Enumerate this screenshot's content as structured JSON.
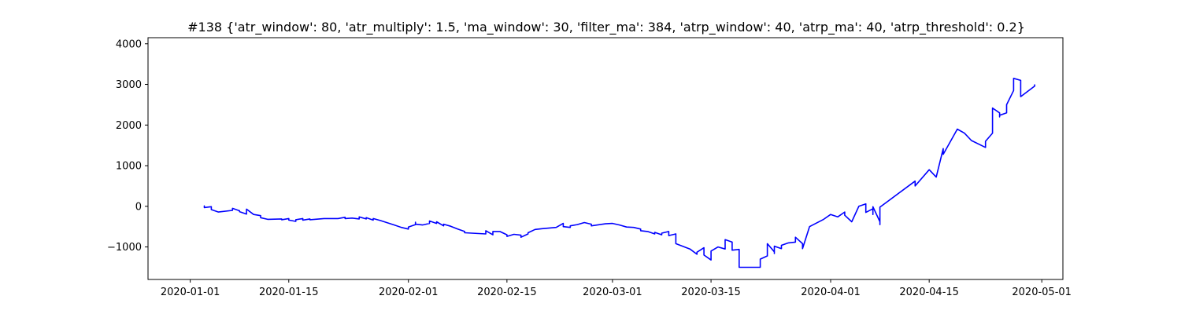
{
  "chart_data": {
    "type": "line",
    "title": "#138 {'atr_window': 80, 'atr_multiply': 1.5, 'ma_window': 30, 'filter_ma': 384, 'atrp_window': 40, 'atrp_ma': 40, 'atrp_threshold': 0.2}",
    "xlabel": "",
    "ylabel": "",
    "grid": false,
    "legend": "none",
    "xlim": [
      "2019-12-26",
      "2020-05-04"
    ],
    "ylim": [
      -1800,
      4150
    ],
    "x_ticks": [
      "2020-01-01",
      "2020-01-15",
      "2020-02-01",
      "2020-02-15",
      "2020-03-01",
      "2020-03-15",
      "2020-04-01",
      "2020-04-15",
      "2020-05-01"
    ],
    "y_ticks": [
      -1000,
      0,
      1000,
      2000,
      3000,
      4000
    ],
    "y_tick_labels": [
      "−1000",
      "0",
      "1000",
      "2000",
      "3000",
      "4000"
    ],
    "series": [
      {
        "color": "#0000ff",
        "points": [
          [
            "2020-01-03",
            0
          ],
          [
            "2020-01-03",
            -20
          ],
          [
            "2020-01-03",
            10
          ],
          [
            "2020-01-03",
            -30
          ],
          [
            "2020-01-04",
            -10
          ],
          [
            "2020-01-04",
            -60
          ],
          [
            "2020-01-04",
            -40
          ],
          [
            "2020-01-04",
            -80
          ],
          [
            "2020-01-05",
            -140
          ],
          [
            "2020-01-07",
            -100
          ],
          [
            "2020-01-07",
            -80
          ],
          [
            "2020-01-07",
            -50
          ],
          [
            "2020-01-08",
            -110
          ],
          [
            "2020-01-08",
            -130
          ],
          [
            "2020-01-09",
            -190
          ],
          [
            "2020-01-09",
            -70
          ],
          [
            "2020-01-10",
            -200
          ],
          [
            "2020-01-11",
            -230
          ],
          [
            "2020-01-11",
            -280
          ],
          [
            "2020-01-12",
            -320
          ],
          [
            "2020-01-14",
            -310
          ],
          [
            "2020-01-14",
            -330
          ],
          [
            "2020-01-15",
            -300
          ],
          [
            "2020-01-15",
            -340
          ],
          [
            "2020-01-16",
            -370
          ],
          [
            "2020-01-16",
            -330
          ],
          [
            "2020-01-17",
            -300
          ],
          [
            "2020-01-17",
            -340
          ],
          [
            "2020-01-18",
            -310
          ],
          [
            "2020-01-18",
            -330
          ],
          [
            "2020-01-20",
            -300
          ],
          [
            "2020-01-21",
            -300
          ],
          [
            "2020-01-22",
            -300
          ],
          [
            "2020-01-23",
            -270
          ],
          [
            "2020-01-23",
            -300
          ],
          [
            "2020-01-24",
            -290
          ],
          [
            "2020-01-25",
            -310
          ],
          [
            "2020-01-25",
            -260
          ],
          [
            "2020-01-26",
            -310
          ],
          [
            "2020-01-26",
            -280
          ],
          [
            "2020-01-27",
            -340
          ],
          [
            "2020-01-27",
            -300
          ],
          [
            "2020-01-28",
            -350
          ],
          [
            "2020-01-30",
            -460
          ],
          [
            "2020-01-31",
            -520
          ],
          [
            "2020-02-01",
            -560
          ],
          [
            "2020-02-01",
            -510
          ],
          [
            "2020-02-02",
            -450
          ],
          [
            "2020-02-02",
            -390
          ],
          [
            "2020-02-02",
            -440
          ],
          [
            "2020-02-03",
            -460
          ],
          [
            "2020-02-04",
            -420
          ],
          [
            "2020-02-04",
            -360
          ],
          [
            "2020-02-05",
            -420
          ],
          [
            "2020-02-05",
            -380
          ],
          [
            "2020-02-06",
            -480
          ],
          [
            "2020-02-06",
            -440
          ],
          [
            "2020-02-07",
            -490
          ],
          [
            "2020-02-08",
            -560
          ],
          [
            "2020-02-09",
            -620
          ],
          [
            "2020-02-09",
            -650
          ],
          [
            "2020-02-11",
            -670
          ],
          [
            "2020-02-12",
            -680
          ],
          [
            "2020-02-12",
            -600
          ],
          [
            "2020-02-13",
            -700
          ],
          [
            "2020-02-13",
            -620
          ],
          [
            "2020-02-14",
            -620
          ],
          [
            "2020-02-15",
            -700
          ],
          [
            "2020-02-15",
            -740
          ],
          [
            "2020-02-16",
            -690
          ],
          [
            "2020-02-17",
            -710
          ],
          [
            "2020-02-17",
            -760
          ],
          [
            "2020-02-18",
            -680
          ],
          [
            "2020-02-18",
            -650
          ],
          [
            "2020-02-19",
            -570
          ],
          [
            "2020-02-20",
            -550
          ],
          [
            "2020-02-22",
            -520
          ],
          [
            "2020-02-23",
            -420
          ],
          [
            "2020-02-23",
            -500
          ],
          [
            "2020-02-24",
            -520
          ],
          [
            "2020-02-24",
            -480
          ],
          [
            "2020-02-25",
            -450
          ],
          [
            "2020-02-26",
            -400
          ],
          [
            "2020-02-27",
            -440
          ],
          [
            "2020-02-27",
            -480
          ],
          [
            "2020-02-29",
            -430
          ],
          [
            "2020-03-01",
            -420
          ],
          [
            "2020-03-02",
            -460
          ],
          [
            "2020-03-03",
            -510
          ],
          [
            "2020-03-04",
            -520
          ],
          [
            "2020-03-05",
            -560
          ],
          [
            "2020-03-05",
            -600
          ],
          [
            "2020-03-06",
            -620
          ],
          [
            "2020-03-07",
            -680
          ],
          [
            "2020-03-07",
            -640
          ],
          [
            "2020-03-08",
            -700
          ],
          [
            "2020-03-08",
            -660
          ],
          [
            "2020-03-09",
            -620
          ],
          [
            "2020-03-09",
            -720
          ],
          [
            "2020-03-10",
            -680
          ],
          [
            "2020-03-10",
            -920
          ],
          [
            "2020-03-12",
            -1050
          ],
          [
            "2020-03-13",
            -1180
          ],
          [
            "2020-03-13",
            -1130
          ],
          [
            "2020-03-14",
            -1020
          ],
          [
            "2020-03-14",
            -1200
          ],
          [
            "2020-03-15",
            -1320
          ],
          [
            "2020-03-15",
            -1100
          ],
          [
            "2020-03-16",
            -1000
          ],
          [
            "2020-03-17",
            -1050
          ],
          [
            "2020-03-17",
            -820
          ],
          [
            "2020-03-18",
            -880
          ],
          [
            "2020-03-18",
            -1080
          ],
          [
            "2020-03-19",
            -1060
          ],
          [
            "2020-03-19",
            -1500
          ],
          [
            "2020-03-22",
            -1500
          ],
          [
            "2020-03-22",
            -1300
          ],
          [
            "2020-03-23",
            -1220
          ],
          [
            "2020-03-23",
            -1100
          ],
          [
            "2020-03-23",
            -920
          ],
          [
            "2020-03-24",
            -1120
          ],
          [
            "2020-03-24",
            -1160
          ],
          [
            "2020-03-24",
            -980
          ],
          [
            "2020-03-25",
            -1040
          ],
          [
            "2020-03-25",
            -960
          ],
          [
            "2020-03-26",
            -900
          ],
          [
            "2020-03-27",
            -880
          ],
          [
            "2020-03-27",
            -760
          ],
          [
            "2020-03-28",
            -920
          ],
          [
            "2020-03-28",
            -1040
          ],
          [
            "2020-03-29",
            -500
          ],
          [
            "2020-03-31",
            -320
          ],
          [
            "2020-04-01",
            -200
          ],
          [
            "2020-04-02",
            -260
          ],
          [
            "2020-04-03",
            -140
          ],
          [
            "2020-04-03",
            -220
          ],
          [
            "2020-04-04",
            -380
          ],
          [
            "2020-04-05",
            0
          ],
          [
            "2020-04-06",
            60
          ],
          [
            "2020-04-06",
            -150
          ],
          [
            "2020-04-07",
            -60
          ],
          [
            "2020-04-07",
            -200
          ],
          [
            "2020-04-07",
            -10
          ],
          [
            "2020-04-08",
            -380
          ],
          [
            "2020-04-08",
            -450
          ],
          [
            "2020-04-08",
            -20
          ],
          [
            "2020-04-13",
            620
          ],
          [
            "2020-04-13",
            500
          ],
          [
            "2020-04-15",
            900
          ],
          [
            "2020-04-16",
            720
          ],
          [
            "2020-04-17",
            1420
          ],
          [
            "2020-04-17",
            1280
          ],
          [
            "2020-04-19",
            1900
          ],
          [
            "2020-04-20",
            1800
          ],
          [
            "2020-04-21",
            1620
          ],
          [
            "2020-04-23",
            1450
          ],
          [
            "2020-04-23",
            1600
          ],
          [
            "2020-04-24",
            1800
          ],
          [
            "2020-04-24",
            2420
          ],
          [
            "2020-04-25",
            2300
          ],
          [
            "2020-04-25",
            2200
          ],
          [
            "2020-04-25",
            2240
          ],
          [
            "2020-04-26",
            2300
          ],
          [
            "2020-04-26",
            2500
          ],
          [
            "2020-04-27",
            2850
          ],
          [
            "2020-04-27",
            3150
          ],
          [
            "2020-04-28",
            3100
          ],
          [
            "2020-04-28",
            2700
          ],
          [
            "2020-04-30",
            2960
          ],
          [
            "2020-04-30",
            3000
          ]
        ]
      }
    ]
  }
}
